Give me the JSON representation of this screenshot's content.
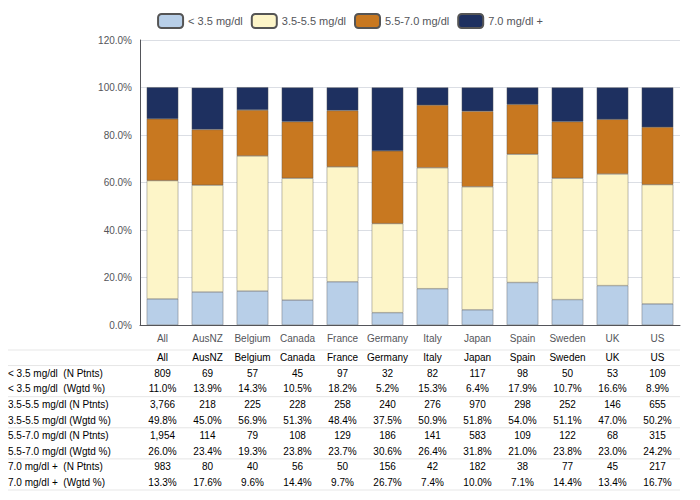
{
  "chart_data": {
    "type": "bar",
    "stacked": true,
    "categories": [
      "All",
      "AusNZ",
      "Belgium",
      "Canada",
      "France",
      "Germany",
      "Italy",
      "Japan",
      "Spain",
      "Sweden",
      "UK",
      "US"
    ],
    "series": [
      {
        "name": "< 3.5 mg/dl",
        "color": "#b8cfe8",
        "values": [
          11.0,
          13.9,
          14.3,
          10.5,
          18.2,
          5.2,
          15.3,
          6.4,
          17.9,
          10.7,
          16.6,
          8.9
        ]
      },
      {
        "name": "3.5-5.5 mg/dl",
        "color": "#fdf5c8",
        "values": [
          49.8,
          45.0,
          56.9,
          51.3,
          48.4,
          37.5,
          50.9,
          51.8,
          54.0,
          51.1,
          47.0,
          50.2
        ]
      },
      {
        "name": "5.5-7.0 mg/dl",
        "color": "#c87820",
        "values": [
          26.0,
          23.4,
          19.3,
          23.8,
          23.7,
          30.6,
          26.4,
          31.8,
          21.0,
          23.8,
          23.0,
          24.2
        ]
      },
      {
        "name": "7.0 mg/dl +",
        "color": "#1e3060",
        "values": [
          13.3,
          17.6,
          9.6,
          14.4,
          9.7,
          26.7,
          7.4,
          10.0,
          7.1,
          14.4,
          13.4,
          16.7
        ]
      }
    ],
    "ylim": [
      0,
      120
    ],
    "yticks": [
      {
        "value": 0,
        "label": "0.0%"
      },
      {
        "value": 20,
        "label": "20.0%"
      },
      {
        "value": 40,
        "label": "40.0%"
      },
      {
        "value": 60,
        "label": "60.0%"
      },
      {
        "value": 80,
        "label": "80.0%"
      },
      {
        "value": 100,
        "label": "100.0%"
      },
      {
        "value": 120,
        "label": "120.0%"
      }
    ],
    "grid": true,
    "legend": "top",
    "table_rows": [
      {
        "label": "< 3.5 mg/dl  (N Ptnts)",
        "values": [
          "809",
          "69",
          "57",
          "45",
          "97",
          "32",
          "82",
          "117",
          "98",
          "50",
          "53",
          "109"
        ]
      },
      {
        "label": "< 3.5 mg/dl  (Wgtd %)",
        "values": [
          "11.0%",
          "13.9%",
          "14.3%",
          "10.5%",
          "18.2%",
          "5.2%",
          "15.3%",
          "6.4%",
          "17.9%",
          "10.7%",
          "16.6%",
          "8.9%"
        ]
      },
      {
        "label": "3.5-5.5 mg/dl (N Ptnts)",
        "values": [
          "3,766",
          "218",
          "225",
          "228",
          "258",
          "240",
          "276",
          "970",
          "298",
          "252",
          "146",
          "655"
        ]
      },
      {
        "label": "3.5-5.5 mg/dl (Wgtd %)",
        "values": [
          "49.8%",
          "45.0%",
          "56.9%",
          "51.3%",
          "48.4%",
          "37.5%",
          "50.9%",
          "51.8%",
          "54.0%",
          "51.1%",
          "47.0%",
          "50.2%"
        ]
      },
      {
        "label": "5.5-7.0 mg/dl (N Ptnts)",
        "values": [
          "1,954",
          "114",
          "79",
          "108",
          "129",
          "186",
          "141",
          "583",
          "109",
          "122",
          "68",
          "315"
        ]
      },
      {
        "label": "5.5-7.0 mg/dl (Wgtd %)",
        "values": [
          "26.0%",
          "23.4%",
          "19.3%",
          "23.8%",
          "23.7%",
          "30.6%",
          "26.4%",
          "31.8%",
          "21.0%",
          "23.8%",
          "23.0%",
          "24.2%"
        ]
      },
      {
        "label": "7.0 mg/dl +  (N Ptnts)",
        "values": [
          "983",
          "80",
          "40",
          "56",
          "50",
          "156",
          "42",
          "182",
          "38",
          "77",
          "45",
          "217"
        ]
      },
      {
        "label": "7.0 mg/dl +  (Wgtd %)",
        "values": [
          "13.3%",
          "17.6%",
          "9.6%",
          "14.4%",
          "9.7%",
          "26.7%",
          "7.4%",
          "10.0%",
          "7.1%",
          "14.4%",
          "13.4%",
          "16.7%"
        ]
      }
    ]
  }
}
